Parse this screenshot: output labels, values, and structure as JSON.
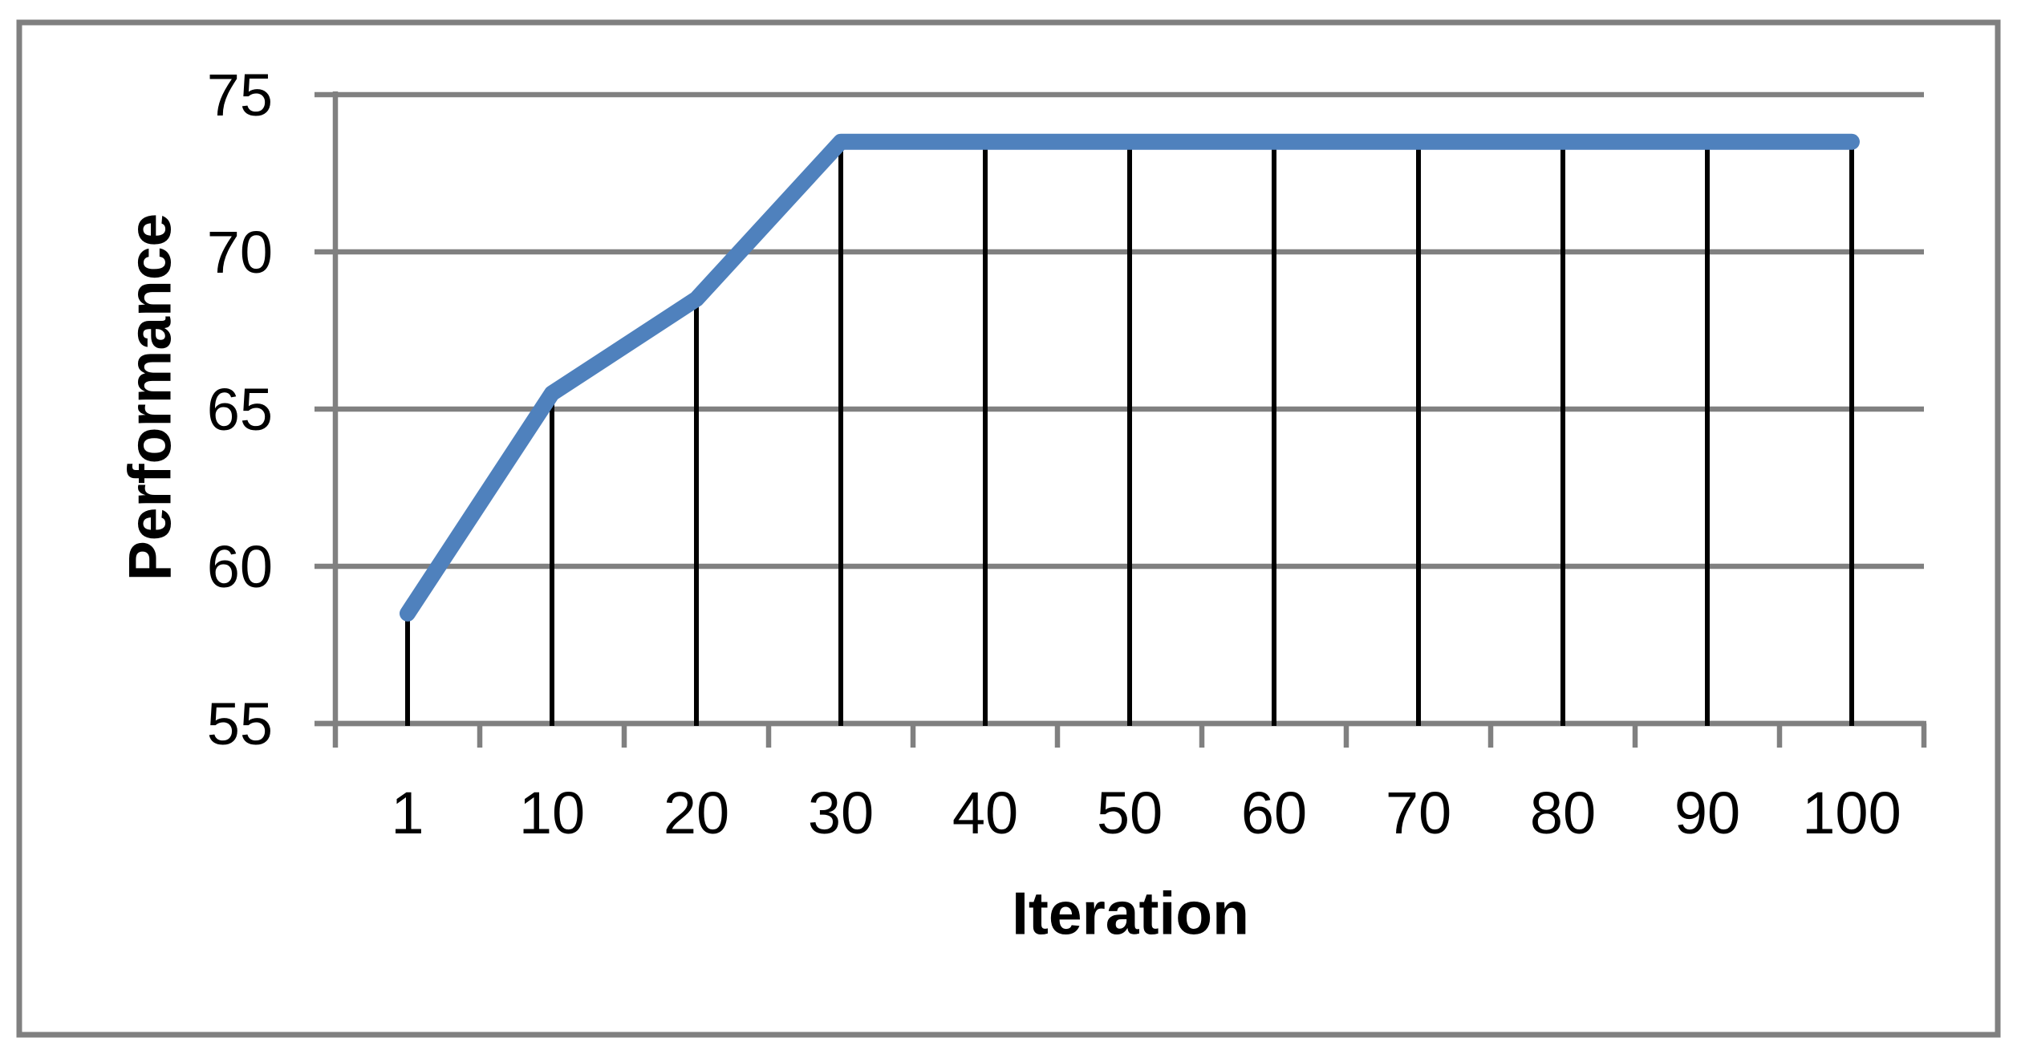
{
  "chart_data": {
    "type": "line",
    "title": "",
    "xlabel": "Iteration",
    "ylabel": "Performance",
    "categories": [
      "1",
      "10",
      "20",
      "30",
      "40",
      "50",
      "60",
      "70",
      "80",
      "90",
      "100"
    ],
    "series": [
      {
        "name": "Performance",
        "values": [
          58.5,
          65.5,
          68.5,
          73.5,
          73.5,
          73.5,
          73.5,
          73.5,
          73.5,
          73.5,
          73.5
        ]
      }
    ],
    "ylim": [
      55,
      75
    ],
    "yticks": [
      55,
      60,
      65,
      70,
      75
    ],
    "grid": "horizontal-major",
    "drop_lines": true,
    "legend_position": "none",
    "colors": {
      "series": "#4F81BD",
      "gridline": "#808080",
      "axis": "#808080",
      "frame": "#808080",
      "drop_line": "#000000",
      "text": "#000000",
      "background": "#FFFFFF"
    }
  }
}
